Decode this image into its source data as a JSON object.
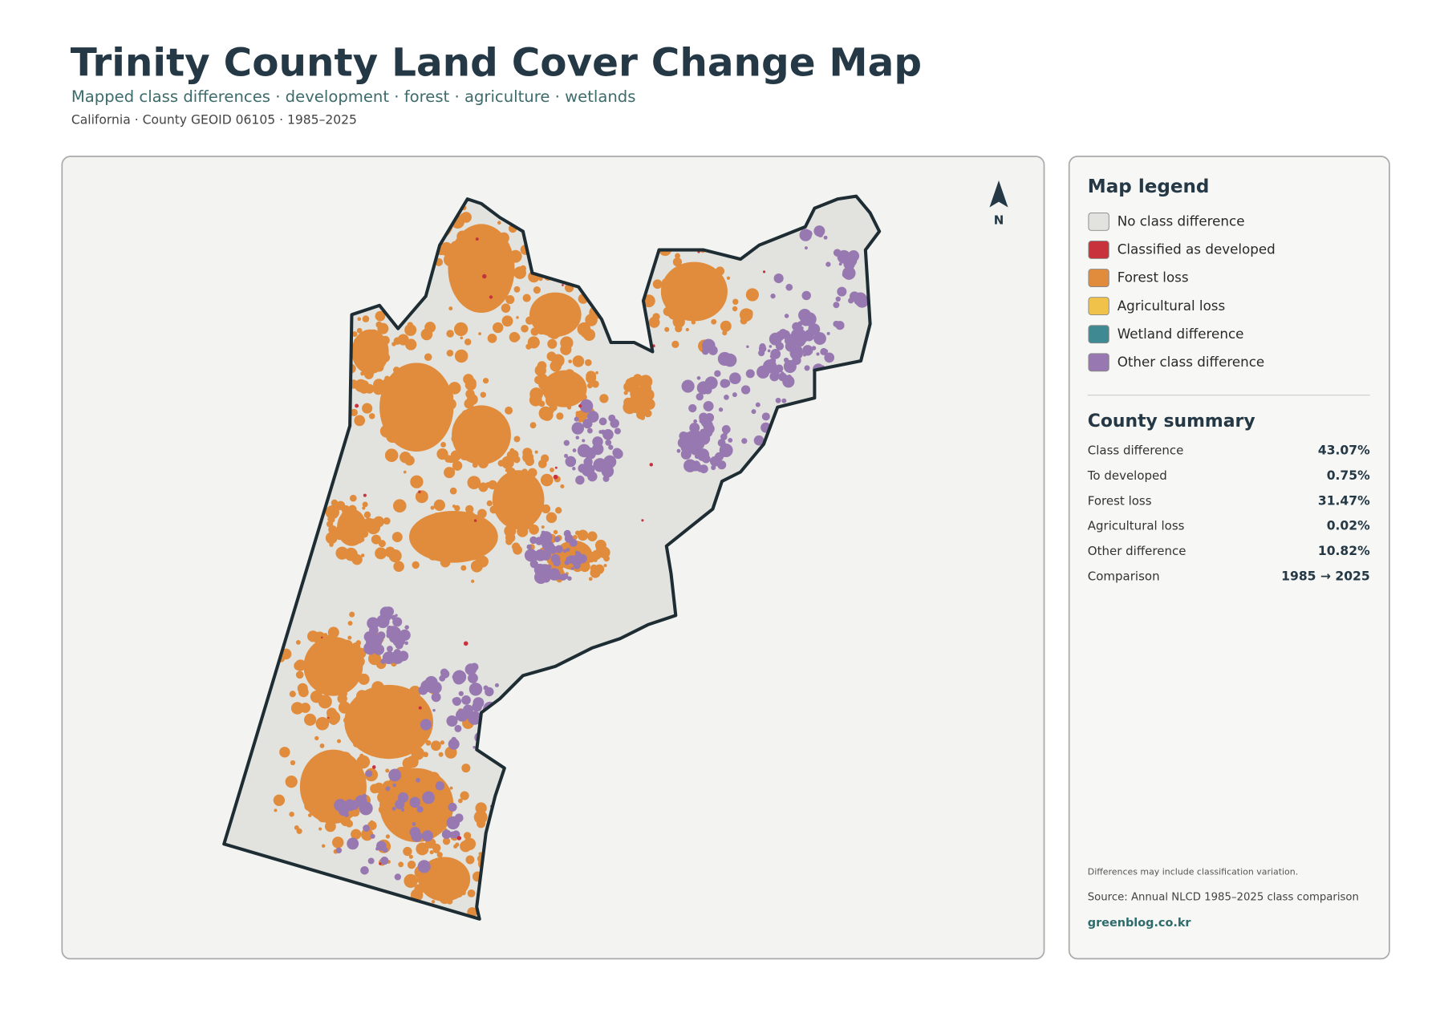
{
  "header": {
    "title": "Trinity County Land Cover Change Map",
    "subtitle": "Mapped class differences · development · forest · agriculture · wetlands",
    "meta": "California · County GEOID 06105 · 1985–2025"
  },
  "map": {
    "north_label": "N"
  },
  "legend": {
    "title": "Map legend",
    "items": [
      {
        "label": "No class difference",
        "color": "#e2e2de"
      },
      {
        "label": "Classified as developed",
        "color": "#c8323c"
      },
      {
        "label": "Forest loss",
        "color": "#e08c3c"
      },
      {
        "label": "Agricultural loss",
        "color": "#f0c24a"
      },
      {
        "label": "Wetland difference",
        "color": "#3f8a92"
      },
      {
        "label": "Other class difference",
        "color": "#9878b0"
      }
    ]
  },
  "summary": {
    "title": "County summary",
    "rows": [
      {
        "label": "Class difference",
        "value": "43.07%"
      },
      {
        "label": "To developed",
        "value": "0.75%"
      },
      {
        "label": "Forest loss",
        "value": "31.47%"
      },
      {
        "label": "Agricultural loss",
        "value": "0.02%"
      },
      {
        "label": "Other difference",
        "value": "10.82%"
      },
      {
        "label": "Comparison",
        "value": "1985 → 2025"
      }
    ]
  },
  "footer": {
    "note": "Differences may include classification variation.",
    "source": "Source: Annual NLCD 1985–2025 class comparison",
    "credit": "greenblog.co.kr"
  }
}
